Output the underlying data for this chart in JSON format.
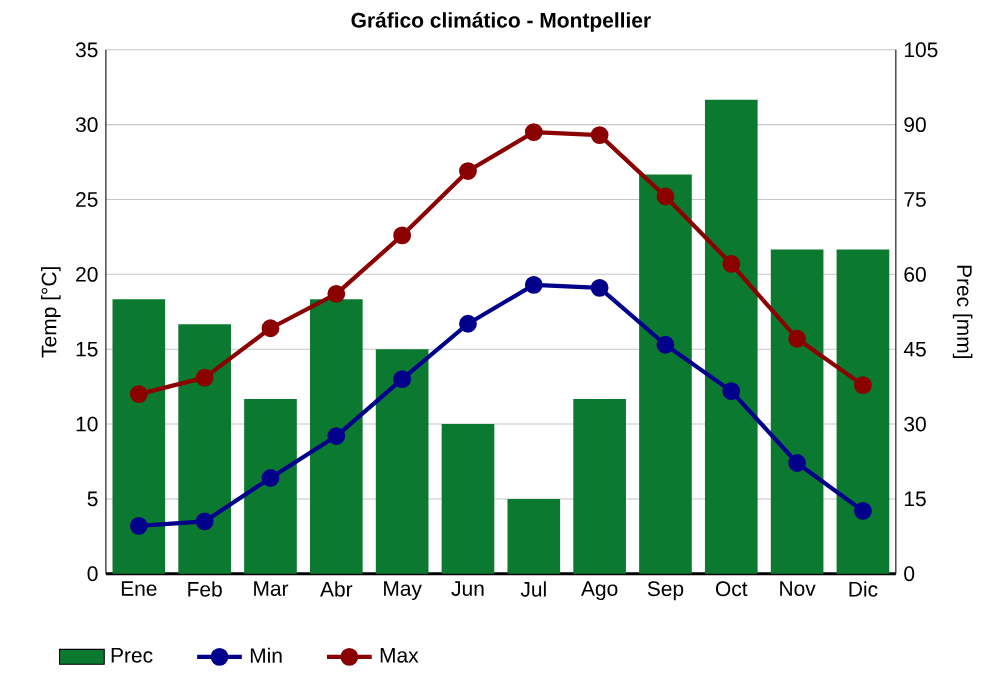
{
  "chart_data": {
    "type": "line",
    "title": "Gráfico climático - Montpellier",
    "categories": [
      "Ene",
      "Feb",
      "Mar",
      "Abr",
      "May",
      "Jun",
      "Jul",
      "Ago",
      "Sep",
      "Oct",
      "Nov",
      "Dic"
    ],
    "series": [
      {
        "name": "Prec",
        "type": "bar",
        "axis": "y2",
        "color": "#0b7a30",
        "values": [
          55,
          50,
          35,
          55,
          45,
          30,
          15,
          35,
          80,
          95,
          65,
          65
        ]
      },
      {
        "name": "Min",
        "axis": "y",
        "color": "#00008b",
        "values": [
          3.2,
          3.5,
          6.4,
          9.2,
          13.0,
          16.7,
          19.3,
          19.1,
          15.3,
          12.2,
          7.4,
          4.2
        ]
      },
      {
        "name": "Max",
        "axis": "y",
        "color": "#8b0000",
        "values": [
          12.0,
          13.1,
          16.4,
          18.7,
          22.6,
          26.9,
          29.5,
          29.3,
          25.2,
          20.7,
          15.7,
          12.6
        ]
      }
    ],
    "ylabel": "Temp [°C]",
    "y2label": "Prec [mm]",
    "ylim": [
      0,
      35
    ],
    "yticks": [
      0,
      5,
      10,
      15,
      20,
      25,
      30,
      35
    ],
    "y2lim": [
      0,
      105
    ],
    "y2ticks": [
      0,
      15,
      30,
      45,
      60,
      75,
      90,
      105
    ],
    "grid": "y",
    "legend": "bottom left",
    "marker": "circle",
    "line_style": "solid"
  }
}
